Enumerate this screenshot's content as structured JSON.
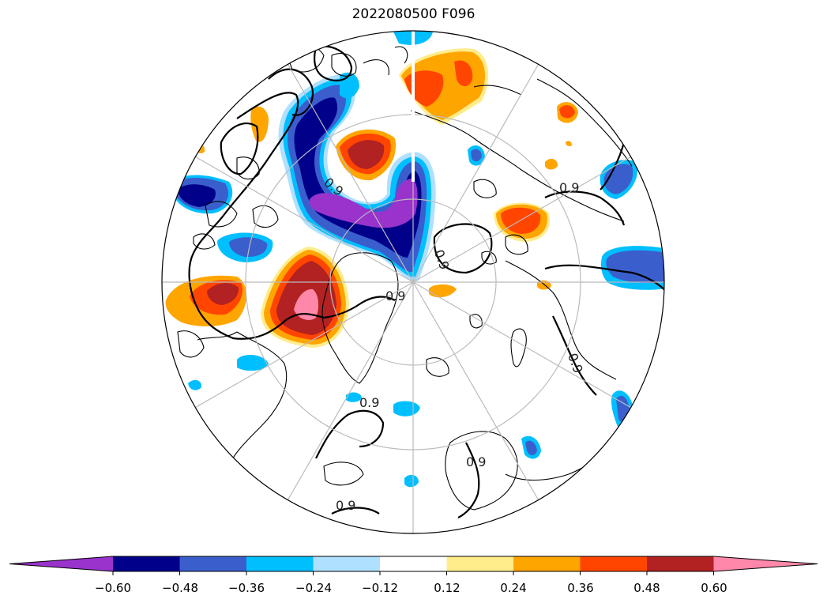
{
  "title": "2022080500 F096",
  "contour_labels": [
    "0.9",
    "0.9",
    "0.9",
    "0.9",
    "0.9",
    "0.9",
    "0.9",
    "0.9"
  ],
  "colorbar": {
    "ticks": [
      "−0.60",
      "−0.48",
      "−0.36",
      "−0.24",
      "−0.12",
      "0.12",
      "0.24",
      "0.36",
      "0.48",
      "0.60"
    ],
    "colors": [
      "#9933cc",
      "#00008b",
      "#3a5fcd",
      "#00bfff",
      "#b0e0ff",
      "#ffffff",
      "#ffec8b",
      "#ffa500",
      "#ff4500",
      "#b22222",
      "#ff88aa"
    ]
  },
  "colors": {
    "pink": "#ff88aa",
    "dark_red": "#b22222",
    "red_orange": "#ff4500",
    "orange": "#ffa500",
    "light_yellow": "#ffec8b",
    "light_blue": "#b0e0ff",
    "sky_blue": "#00bfff",
    "royal_blue": "#3a5fcd",
    "navy": "#00008b",
    "purple": "#9933cc",
    "grid": "#bbbbbb"
  }
}
